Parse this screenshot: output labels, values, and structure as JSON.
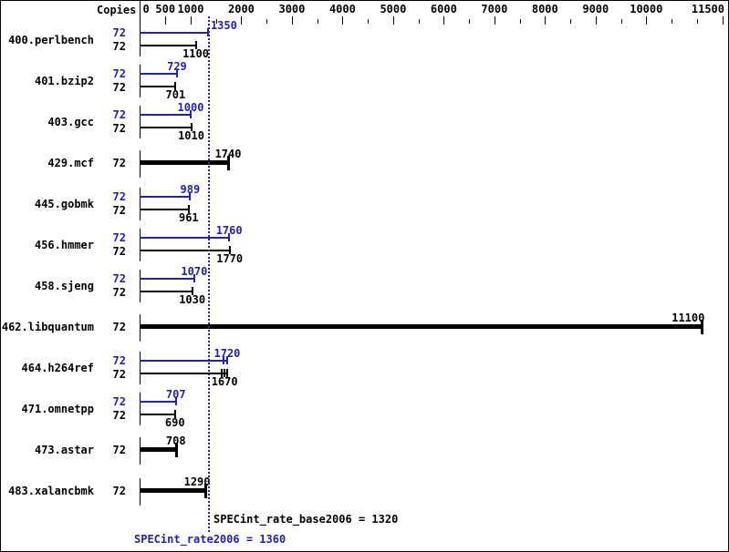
{
  "header": {
    "copies_label": "Copies"
  },
  "footer": {
    "base_text": "SPECint_rate_base2006 = 1320",
    "peak_text": "SPECint_rate2006 = 1360",
    "base_value": 1320,
    "peak_value": 1360
  },
  "colors": {
    "peak_blue": "#2222aa",
    "base_black": "#000000",
    "reference_line_blue": "#2222aa",
    "background": "#ffffff",
    "border": "#000000"
  },
  "chart_data": {
    "type": "bar",
    "orientation": "horizontal",
    "xlim": [
      0,
      11500
    ],
    "grid": false,
    "axis_labeled_ticks": [
      0,
      500,
      1000,
      2000,
      3000,
      4000,
      5000,
      6000,
      7000,
      8000,
      9000,
      10000,
      11500
    ],
    "minor_tick_step": 500,
    "reference_line_value": 1360,
    "copies_column": "Copies",
    "rows": [
      {
        "benchmark": "400.perlbench",
        "copies": 72,
        "peak": 1350,
        "base": 1100,
        "peak_label_dx": 17
      },
      {
        "benchmark": "401.bzip2",
        "copies": 72,
        "peak": 729,
        "base": 701
      },
      {
        "benchmark": "403.gcc",
        "copies": 72,
        "peak": 1000,
        "base": 1010
      },
      {
        "benchmark": "429.mcf",
        "copies": 72,
        "base": 1740,
        "single_bar": true
      },
      {
        "benchmark": "445.gobmk",
        "copies": 72,
        "peak": 989,
        "base": 961
      },
      {
        "benchmark": "456.hmmer",
        "copies": 72,
        "peak": 1760,
        "base": 1770
      },
      {
        "benchmark": "458.sjeng",
        "copies": 72,
        "peak": 1070,
        "base": 1030
      },
      {
        "benchmark": "462.libquantum",
        "copies": 72,
        "base": 11100,
        "single_bar": true,
        "base_label_dx": -15
      },
      {
        "benchmark": "464.h264ref",
        "copies": 72,
        "peak": 1720,
        "base": 1670,
        "peak_run_ticks": [
          1650,
          1720
        ],
        "base_run_ticks": [
          1620,
          1670,
          1730
        ]
      },
      {
        "benchmark": "471.omnetpp",
        "copies": 72,
        "peak": 707,
        "base": 690
      },
      {
        "benchmark": "473.astar",
        "copies": 72,
        "base": 708,
        "single_bar": true
      },
      {
        "benchmark": "483.xalancbmk",
        "copies": 72,
        "base": 1290,
        "single_bar": true,
        "base_label_dx": -9
      }
    ]
  }
}
